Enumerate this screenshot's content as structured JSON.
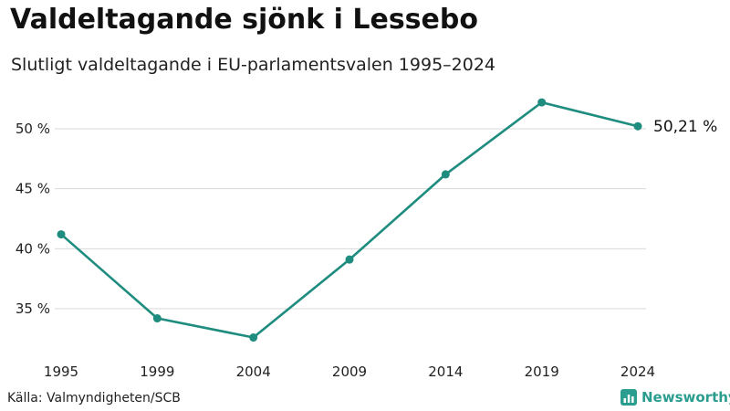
{
  "header": {
    "title": "Valdeltagande sjönk i Lessebo",
    "subtitle": "Slutligt valdeltagande i EU-parlamentsvalen 1995–2024"
  },
  "footer": {
    "source": "Källa: Valmyndigheten/SCB",
    "brand": "Newsworthy"
  },
  "colors": {
    "line": "#1e8c7e",
    "grid": "#d9d9d9",
    "brand": "#2a9d8f"
  },
  "chart_data": {
    "type": "line",
    "x": [
      "1995",
      "1999",
      "2004",
      "2009",
      "2014",
      "2019",
      "2024"
    ],
    "series": [
      {
        "values": [
          41.2,
          34.2,
          32.6,
          39.1,
          46.2,
          52.2,
          50.21
        ]
      }
    ],
    "y_ticks": [
      "35 %",
      "40 %",
      "45 %",
      "50 %"
    ],
    "y_tick_values": [
      35,
      40,
      45,
      50
    ],
    "ylim": [
      32,
      53
    ],
    "grid": true,
    "end_label": "50,21 %"
  }
}
